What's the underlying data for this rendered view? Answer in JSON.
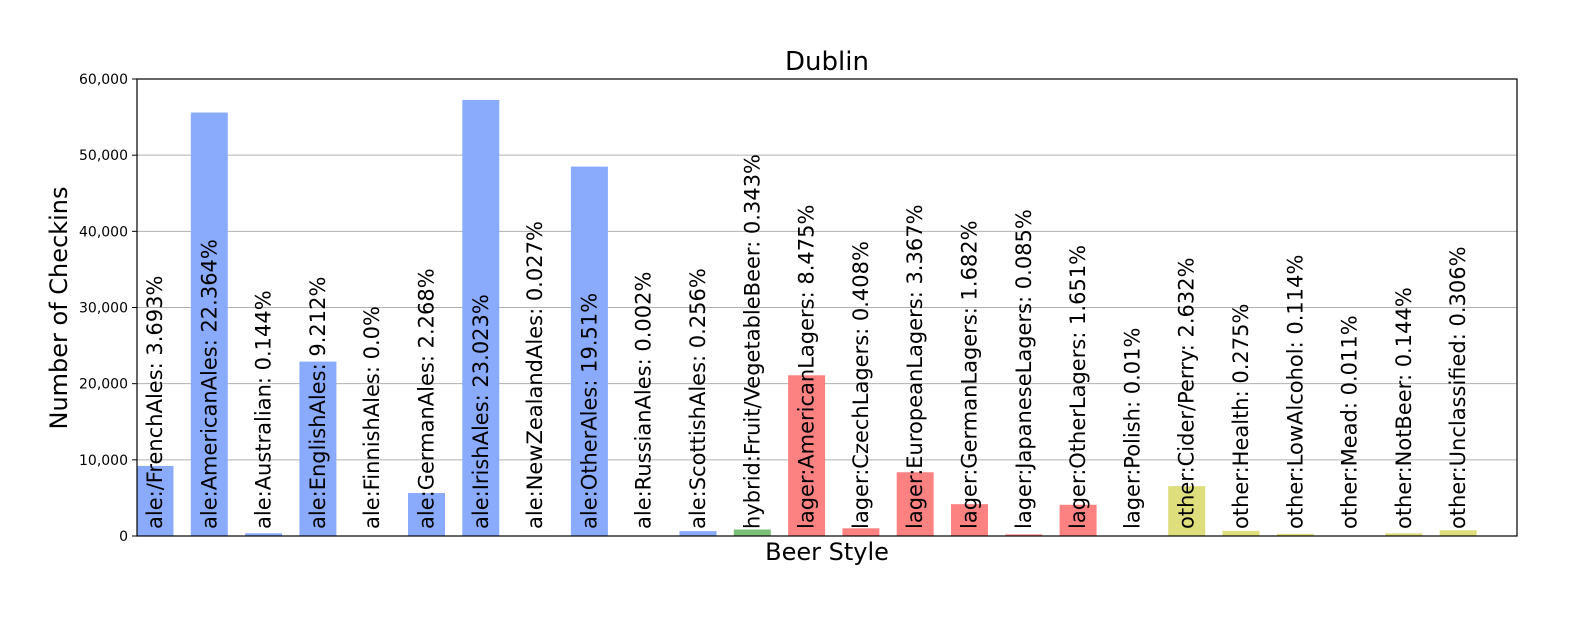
{
  "chart_data": {
    "type": "bar",
    "title": "Dublin",
    "xlabel": "Beer Style",
    "ylabel": "Number of Checkins",
    "ylim": [
      0,
      60000
    ],
    "yticks": [
      0,
      10000,
      20000,
      30000,
      40000,
      50000,
      60000
    ],
    "ytick_labels": [
      "0",
      "10,000",
      "20,000",
      "30,000",
      "40,000",
      "50,000",
      "60,000"
    ],
    "grid": true,
    "legend": "none",
    "colors": {
      "ale": "#8aaafc",
      "hybrid": "#7bbf7b",
      "lager": "#fc8282",
      "other": "#dede7c"
    },
    "bars": [
      {
        "category": "ale:/FrenchAles",
        "group": "ale",
        "value": 9200,
        "label": "ale:/FrenchAles: 3.693%"
      },
      {
        "category": "ale:AmericanAles",
        "group": "ale",
        "value": 55600,
        "label": "ale:AmericanAles: 22.364%"
      },
      {
        "category": "ale:Australian",
        "group": "ale",
        "value": 360,
        "label": "ale:Australian: 0.144%"
      },
      {
        "category": "ale:EnglishAles",
        "group": "ale",
        "value": 22900,
        "label": "ale:EnglishAles: 9.212%"
      },
      {
        "category": "ale:FinnishAles",
        "group": "ale",
        "value": 0,
        "label": "ale:FinnishAles: 0.0%"
      },
      {
        "category": "ale:GermanAles",
        "group": "ale",
        "value": 5640,
        "label": "ale:GermanAles: 2.268%"
      },
      {
        "category": "ale:IrishAles",
        "group": "ale",
        "value": 57250,
        "label": "ale:IrishAles: 23.023%"
      },
      {
        "category": "ale:NewZealandAles",
        "group": "ale",
        "value": 70,
        "label": "ale:NewZealandAles: 0.027%"
      },
      {
        "category": "ale:OtherAles",
        "group": "ale",
        "value": 48500,
        "label": "ale:OtherAles: 19.51%"
      },
      {
        "category": "ale:RussianAles",
        "group": "ale",
        "value": 5,
        "label": "ale:RussianAles: 0.002%"
      },
      {
        "category": "ale:ScottishAles",
        "group": "ale",
        "value": 640,
        "label": "ale:ScottishAles: 0.256%"
      },
      {
        "category": "hybrid:Fruit/VegetableBeer",
        "group": "hybrid",
        "value": 850,
        "label": "hybrid:Fruit/VegetableBeer: 0.343%"
      },
      {
        "category": "lager:AmericanLagers",
        "group": "lager",
        "value": 21100,
        "label": "lager:AmericanLagers: 8.475%"
      },
      {
        "category": "lager:CzechLagers",
        "group": "lager",
        "value": 1010,
        "label": "lager:CzechLagers: 0.408%"
      },
      {
        "category": "lager:EuropeanLagers",
        "group": "lager",
        "value": 8370,
        "label": "lager:EuropeanLagers: 3.367%"
      },
      {
        "category": "lager:GermanLagers",
        "group": "lager",
        "value": 4180,
        "label": "lager:GermanLagers: 1.682%"
      },
      {
        "category": "lager:JapaneseLagers",
        "group": "lager",
        "value": 210,
        "label": "lager:JapaneseLagers: 0.085%"
      },
      {
        "category": "lager:OtherLagers",
        "group": "lager",
        "value": 4100,
        "label": "lager:OtherLagers: 1.651%"
      },
      {
        "category": "lager:Polish",
        "group": "lager",
        "value": 25,
        "label": "lager:Polish: 0.01%"
      },
      {
        "category": "other:Cider/Perry",
        "group": "other",
        "value": 6550,
        "label": "other:Cider/Perry: 2.632%"
      },
      {
        "category": "other:Health",
        "group": "other",
        "value": 680,
        "label": "other:Health: 0.275%"
      },
      {
        "category": "other:LowAlcohol",
        "group": "other",
        "value": 280,
        "label": "other:LowAlcohol: 0.114%"
      },
      {
        "category": "other:Mead",
        "group": "other",
        "value": 27,
        "label": "other:Mead: 0.011%"
      },
      {
        "category": "other:NotBeer",
        "group": "other",
        "value": 360,
        "label": "other:NotBeer: 0.144%"
      },
      {
        "category": "other:Unclassified",
        "group": "other",
        "value": 760,
        "label": "other:Unclassified: 0.306%"
      }
    ]
  }
}
